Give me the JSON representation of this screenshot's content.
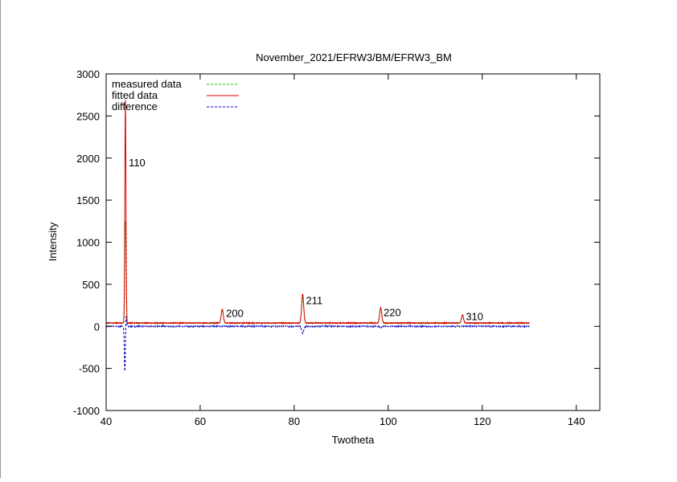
{
  "chart_data": {
    "type": "line",
    "title": "November_2021/EFRW3/BM/EFRW3_BM",
    "xlabel": "Twotheta",
    "ylabel": "Intensity",
    "xlim": [
      40,
      145
    ],
    "ylim": [
      -1000,
      3000
    ],
    "x_ticks": [
      40,
      60,
      80,
      100,
      120,
      140
    ],
    "y_ticks": [
      -1000,
      -500,
      0,
      500,
      1000,
      1500,
      2000,
      2500,
      3000
    ],
    "grid": false,
    "legend_position": "top-left",
    "x_range_data": [
      40,
      130
    ],
    "series": [
      {
        "name": "measured data",
        "color": "#00c000",
        "style": "dashed",
        "baseline": 40,
        "peaks": [
          {
            "x": 44.1,
            "height": 1210
          },
          {
            "x": 64.7,
            "height": 160
          },
          {
            "x": 81.8,
            "height": 300
          },
          {
            "x": 98.4,
            "height": 170
          },
          {
            "x": 115.8,
            "height": 95
          }
        ]
      },
      {
        "name": "fitted data",
        "color": "#e00000",
        "style": "solid",
        "baseline": 40,
        "peaks": [
          {
            "x": 44.1,
            "height": 2650
          },
          {
            "x": 64.7,
            "height": 165
          },
          {
            "x": 81.8,
            "height": 345
          },
          {
            "x": 98.4,
            "height": 180
          },
          {
            "x": 115.8,
            "height": 95
          }
        ]
      },
      {
        "name": "difference",
        "color": "#0000c0",
        "style": "dashed",
        "baseline": 0,
        "peaks": [
          {
            "x": 44.0,
            "height": -580
          },
          {
            "x": 44.2,
            "height": 200
          },
          {
            "x": 81.8,
            "height": -80
          },
          {
            "x": 98.4,
            "height": -20
          }
        ]
      }
    ],
    "annotations": [
      {
        "text": "110",
        "x": 44.8,
        "y": 1900
      },
      {
        "text": "200",
        "x": 65.5,
        "y": 110
      },
      {
        "text": "211",
        "x": 82.5,
        "y": 265
      },
      {
        "text": "220",
        "x": 99.0,
        "y": 120
      },
      {
        "text": "310",
        "x": 116.5,
        "y": 75
      }
    ]
  }
}
